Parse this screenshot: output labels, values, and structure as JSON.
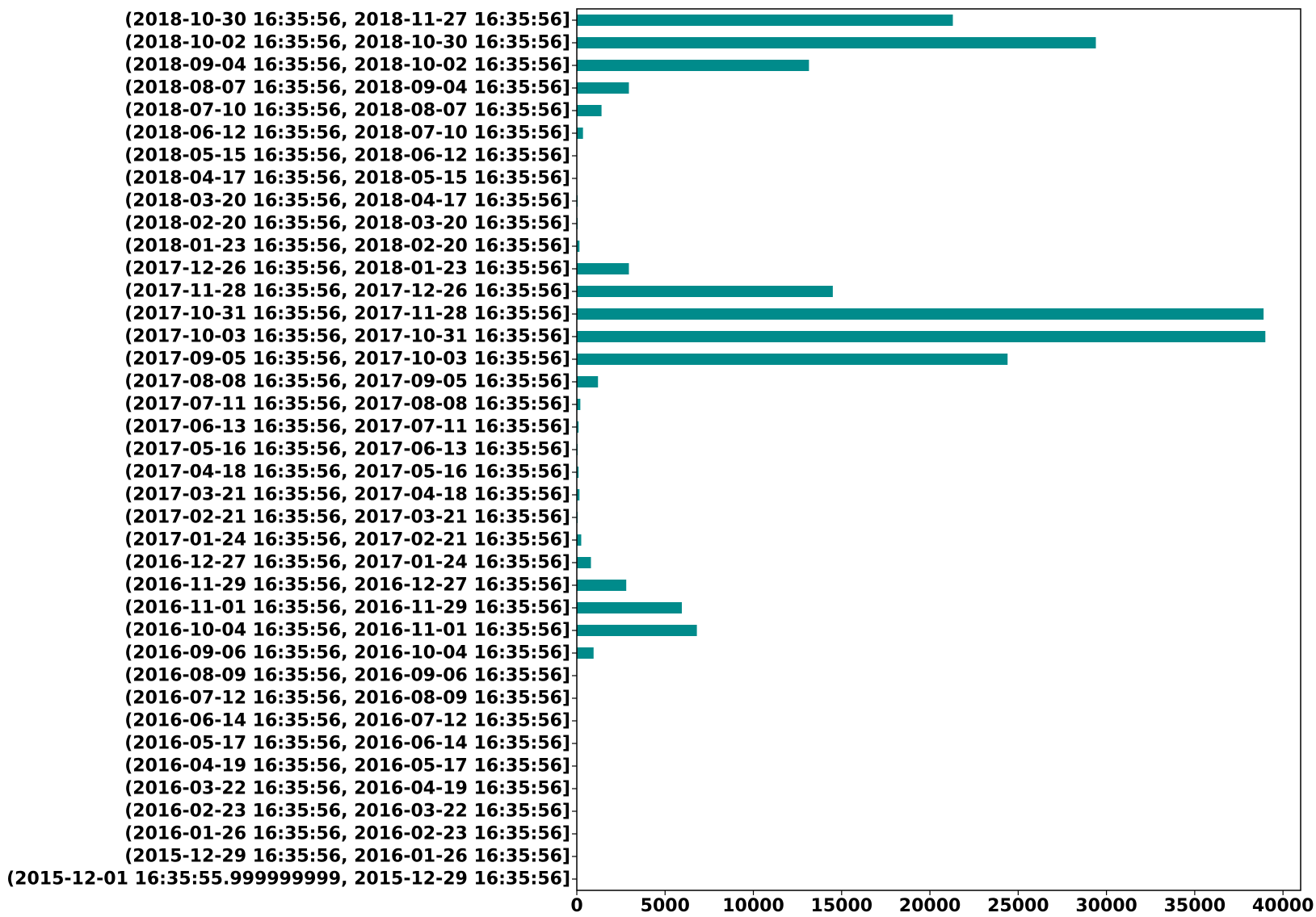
{
  "chart_data": {
    "type": "bar",
    "orientation": "horizontal",
    "title": "",
    "xlabel": "",
    "ylabel": "",
    "xlim": [
      0,
      41000
    ],
    "x_ticks": [
      0,
      5000,
      10000,
      15000,
      20000,
      25000,
      30000,
      35000,
      40000
    ],
    "x_tick_labels": [
      "0",
      "5000",
      "10000",
      "15000",
      "20000",
      "25000",
      "30000",
      "35000",
      "40000"
    ],
    "grid": false,
    "legend": "none",
    "bar_color": "#008B8B",
    "categories": [
      "(2015-12-01 16:35:55.999999999, 2015-12-29 16:35:56]",
      "(2015-12-29 16:35:56, 2016-01-26 16:35:56]",
      "(2016-01-26 16:35:56, 2016-02-23 16:35:56]",
      "(2016-02-23 16:35:56, 2016-03-22 16:35:56]",
      "(2016-03-22 16:35:56, 2016-04-19 16:35:56]",
      "(2016-04-19 16:35:56, 2016-05-17 16:35:56]",
      "(2016-05-17 16:35:56, 2016-06-14 16:35:56]",
      "(2016-06-14 16:35:56, 2016-07-12 16:35:56]",
      "(2016-07-12 16:35:56, 2016-08-09 16:35:56]",
      "(2016-08-09 16:35:56, 2016-09-06 16:35:56]",
      "(2016-09-06 16:35:56, 2016-10-04 16:35:56]",
      "(2016-10-04 16:35:56, 2016-11-01 16:35:56]",
      "(2016-11-01 16:35:56, 2016-11-29 16:35:56]",
      "(2016-11-29 16:35:56, 2016-12-27 16:35:56]",
      "(2016-12-27 16:35:56, 2017-01-24 16:35:56]",
      "(2017-01-24 16:35:56, 2017-02-21 16:35:56]",
      "(2017-02-21 16:35:56, 2017-03-21 16:35:56]",
      "(2017-03-21 16:35:56, 2017-04-18 16:35:56]",
      "(2017-04-18 16:35:56, 2017-05-16 16:35:56]",
      "(2017-05-16 16:35:56, 2017-06-13 16:35:56]",
      "(2017-06-13 16:35:56, 2017-07-11 16:35:56]",
      "(2017-07-11 16:35:56, 2017-08-08 16:35:56]",
      "(2017-08-08 16:35:56, 2017-09-05 16:35:56]",
      "(2017-09-05 16:35:56, 2017-10-03 16:35:56]",
      "(2017-10-03 16:35:56, 2017-10-31 16:35:56]",
      "(2017-10-31 16:35:56, 2017-11-28 16:35:56]",
      "(2017-11-28 16:35:56, 2017-12-26 16:35:56]",
      "(2017-12-26 16:35:56, 2018-01-23 16:35:56]",
      "(2018-01-23 16:35:56, 2018-02-20 16:35:56]",
      "(2018-02-20 16:35:56, 2018-03-20 16:35:56]",
      "(2018-03-20 16:35:56, 2018-04-17 16:35:56]",
      "(2018-04-17 16:35:56, 2018-05-15 16:35:56]",
      "(2018-05-15 16:35:56, 2018-06-12 16:35:56]",
      "(2018-06-12 16:35:56, 2018-07-10 16:35:56]",
      "(2018-07-10 16:35:56, 2018-08-07 16:35:56]",
      "(2018-08-07 16:35:56, 2018-09-04 16:35:56]",
      "(2018-09-04 16:35:56, 2018-10-02 16:35:56]",
      "(2018-10-02 16:35:56, 2018-10-30 16:35:56]",
      "(2018-10-30 16:35:56, 2018-11-27 16:35:56]"
    ],
    "values": [
      0,
      0,
      0,
      0,
      0,
      0,
      0,
      0,
      0,
      5,
      950,
      6800,
      5950,
      2800,
      800,
      250,
      50,
      150,
      100,
      50,
      100,
      200,
      1200,
      24400,
      39000,
      38900,
      14500,
      2950,
      150,
      50,
      50,
      20,
      20,
      350,
      1400,
      2950,
      13150,
      29400,
      21300
    ]
  }
}
